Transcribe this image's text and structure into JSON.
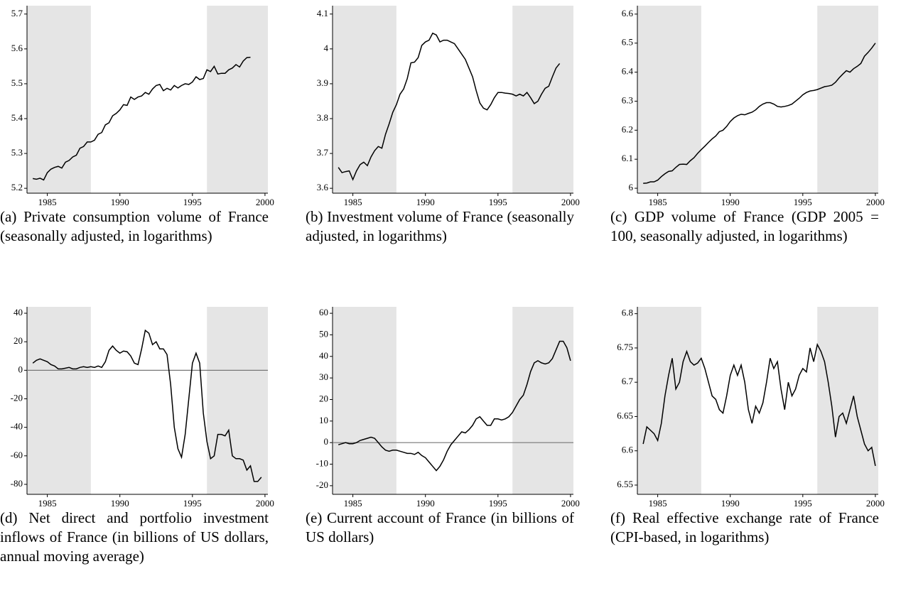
{
  "chart_data": [
    {
      "type": "line",
      "caption": "(a) Private consumption volume of France (seasonally adjusted, in logarithms)",
      "color": "#000000",
      "shade_color": "#e5e5e5",
      "xlim": [
        1983.6,
        2000.2
      ],
      "xticks": [
        1985,
        1990,
        1995,
        2000
      ],
      "ylim": [
        5.186,
        5.724
      ],
      "yticks": [
        5.2,
        5.3,
        5.4,
        5.5,
        5.6,
        5.7
      ],
      "shaded": [
        [
          1983.6,
          1988
        ],
        [
          1996,
          2000.2
        ]
      ],
      "x": [
        1984,
        1984.25,
        1984.5,
        1984.75,
        1985,
        1985.25,
        1985.5,
        1985.75,
        1986,
        1986.25,
        1986.5,
        1986.75,
        1987,
        1987.25,
        1987.5,
        1987.75,
        1988,
        1988.25,
        1988.5,
        1988.75,
        1989,
        1989.25,
        1989.5,
        1989.75,
        1990,
        1990.25,
        1990.5,
        1990.75,
        1991,
        1991.25,
        1991.5,
        1991.75,
        1992,
        1992.25,
        1992.5,
        1992.75,
        1993,
        1993.25,
        1993.5,
        1993.75,
        1994,
        1994.25,
        1994.5,
        1994.75,
        1995,
        1995.25,
        1995.5,
        1995.75,
        1996,
        1996.25,
        1996.5,
        1996.75,
        1997,
        1997.25,
        1997.5,
        1997.75,
        1998,
        1998.25,
        1998.5,
        1998.75,
        1999
      ],
      "values": [
        5.228,
        5.226,
        5.229,
        5.224,
        5.245,
        5.255,
        5.26,
        5.263,
        5.258,
        5.275,
        5.28,
        5.29,
        5.295,
        5.315,
        5.32,
        5.333,
        5.333,
        5.338,
        5.355,
        5.36,
        5.382,
        5.388,
        5.408,
        5.415,
        5.425,
        5.44,
        5.438,
        5.462,
        5.455,
        5.462,
        5.465,
        5.475,
        5.47,
        5.485,
        5.495,
        5.498,
        5.48,
        5.487,
        5.482,
        5.495,
        5.488,
        5.495,
        5.5,
        5.498,
        5.505,
        5.52,
        5.512,
        5.515,
        5.54,
        5.535,
        5.55,
        5.528,
        5.53,
        5.53,
        5.54,
        5.545,
        5.555,
        5.548,
        5.565,
        5.575,
        5.576
      ]
    },
    {
      "type": "line",
      "caption": "(b) Investment volume of France (seasonally adjusted, in logarithms)",
      "color": "#000000",
      "shade_color": "#e5e5e5",
      "xlim": [
        1983.6,
        2000.2
      ],
      "xticks": [
        1985,
        1990,
        1995,
        2000
      ],
      "ylim": [
        3.586,
        4.124
      ],
      "yticks": [
        3.6,
        3.7,
        3.8,
        3.9,
        4,
        4.1
      ],
      "shaded": [
        [
          1983.6,
          1988
        ],
        [
          1996,
          2000.2
        ]
      ],
      "x": [
        1984,
        1984.25,
        1984.5,
        1984.75,
        1985,
        1985.25,
        1985.5,
        1985.75,
        1986,
        1986.25,
        1986.5,
        1986.75,
        1987,
        1987.25,
        1987.5,
        1987.75,
        1988,
        1988.25,
        1988.5,
        1988.75,
        1989,
        1989.25,
        1989.5,
        1989.75,
        1990,
        1990.25,
        1990.5,
        1990.75,
        1991,
        1991.25,
        1991.5,
        1991.75,
        1992,
        1992.25,
        1992.5,
        1992.75,
        1993,
        1993.25,
        1993.5,
        1993.75,
        1994,
        1994.25,
        1994.5,
        1994.75,
        1995,
        1995.25,
        1995.5,
        1995.75,
        1996,
        1996.25,
        1996.5,
        1996.75,
        1997,
        1997.25,
        1997.5,
        1997.75,
        1998,
        1998.25,
        1998.5,
        1998.75,
        1999,
        1999.25
      ],
      "values": [
        3.66,
        3.645,
        3.648,
        3.65,
        3.625,
        3.65,
        3.668,
        3.675,
        3.665,
        3.69,
        3.708,
        3.72,
        3.715,
        3.755,
        3.785,
        3.818,
        3.84,
        3.87,
        3.885,
        3.915,
        3.96,
        3.962,
        3.975,
        4.01,
        4.02,
        4.025,
        4.045,
        4.04,
        4.02,
        4.025,
        4.025,
        4.02,
        4.015,
        4.0,
        3.985,
        3.97,
        3.945,
        3.92,
        3.88,
        3.845,
        3.83,
        3.825,
        3.84,
        3.86,
        3.875,
        3.875,
        3.873,
        3.872,
        3.87,
        3.865,
        3.87,
        3.865,
        3.875,
        3.86,
        3.843,
        3.85,
        3.87,
        3.887,
        3.893,
        3.92,
        3.945,
        3.958
      ]
    },
    {
      "type": "line",
      "caption": "(c) GDP volume of France (GDP 2005 = 100, seasonally adjusted, in logarithms)",
      "color": "#000000",
      "shade_color": "#e5e5e5",
      "xlim": [
        1983.6,
        2000.2
      ],
      "xticks": [
        1985,
        1990,
        1995,
        2000
      ],
      "ylim": [
        5.983,
        6.629
      ],
      "yticks": [
        6,
        6.1,
        6.2,
        6.3,
        6.4,
        6.5,
        6.6
      ],
      "shaded": [
        [
          1983.6,
          1988
        ],
        [
          1996,
          2000.2
        ]
      ],
      "x": [
        1984,
        1984.25,
        1984.5,
        1984.75,
        1985,
        1985.25,
        1985.5,
        1985.75,
        1986,
        1986.25,
        1986.5,
        1986.75,
        1987,
        1987.25,
        1987.5,
        1987.75,
        1988,
        1988.25,
        1988.5,
        1988.75,
        1989,
        1989.25,
        1989.5,
        1989.75,
        1990,
        1990.25,
        1990.5,
        1990.75,
        1991,
        1991.25,
        1991.5,
        1991.75,
        1992,
        1992.25,
        1992.5,
        1992.75,
        1993,
        1993.25,
        1993.5,
        1993.75,
        1994,
        1994.25,
        1994.5,
        1994.75,
        1995,
        1995.25,
        1995.5,
        1995.75,
        1996,
        1996.25,
        1996.5,
        1996.75,
        1997,
        1997.25,
        1997.5,
        1997.75,
        1998,
        1998.25,
        1998.5,
        1998.75,
        1999,
        1999.25,
        1999.5,
        1999.75,
        2000
      ],
      "values": [
        6.017,
        6.018,
        6.022,
        6.022,
        6.028,
        6.04,
        6.05,
        6.058,
        6.06,
        6.072,
        6.082,
        6.083,
        6.082,
        6.095,
        6.105,
        6.12,
        6.133,
        6.145,
        6.158,
        6.17,
        6.18,
        6.195,
        6.2,
        6.213,
        6.23,
        6.242,
        6.25,
        6.255,
        6.253,
        6.258,
        6.262,
        6.27,
        6.282,
        6.29,
        6.295,
        6.295,
        6.29,
        6.282,
        6.28,
        6.282,
        6.285,
        6.29,
        6.3,
        6.31,
        6.322,
        6.33,
        6.335,
        6.337,
        6.34,
        6.345,
        6.35,
        6.352,
        6.355,
        6.365,
        6.38,
        6.393,
        6.405,
        6.4,
        6.412,
        6.42,
        6.43,
        6.455,
        6.468,
        6.483,
        6.5
      ]
    },
    {
      "type": "line",
      "caption": "(d) Net direct and portfolio investment inflows of France (in billions of US dollars, annual moving average)",
      "color": "#000000",
      "shade_color": "#e5e5e5",
      "xlim": [
        1983.6,
        2000.2
      ],
      "xticks": [
        1985,
        1990,
        1995,
        2000
      ],
      "ylim": [
        -87,
        44.5
      ],
      "yticks": [
        -80,
        -60,
        -40,
        -20,
        0,
        20,
        40
      ],
      "shaded": [
        [
          1983.6,
          1988
        ],
        [
          1996,
          2000.2
        ]
      ],
      "hline": 0,
      "x": [
        1984,
        1984.25,
        1984.5,
        1984.75,
        1985,
        1985.25,
        1985.5,
        1985.75,
        1986,
        1986.25,
        1986.5,
        1986.75,
        1987,
        1987.25,
        1987.5,
        1987.75,
        1988,
        1988.25,
        1988.5,
        1988.75,
        1989,
        1989.25,
        1989.5,
        1989.75,
        1990,
        1990.25,
        1990.5,
        1990.75,
        1991,
        1991.25,
        1991.5,
        1991.75,
        1992,
        1992.25,
        1992.5,
        1992.75,
        1993,
        1993.25,
        1993.5,
        1993.75,
        1994,
        1994.25,
        1994.5,
        1994.75,
        1995,
        1995.25,
        1995.5,
        1995.75,
        1996,
        1996.25,
        1996.5,
        1996.75,
        1997,
        1997.25,
        1997.5,
        1997.75,
        1998,
        1998.25,
        1998.5,
        1998.75,
        1999,
        1999.25,
        1999.5,
        1999.75
      ],
      "values": [
        5,
        7,
        8,
        7,
        6,
        4,
        3,
        1,
        1,
        1.5,
        2,
        1,
        1,
        2,
        2.5,
        2,
        2.5,
        2,
        3,
        2,
        6,
        14,
        17,
        14,
        12,
        13.5,
        13,
        10,
        5,
        4,
        15,
        28,
        26,
        18,
        20,
        15,
        15,
        11,
        -10,
        -40,
        -55,
        -61,
        -45,
        -20,
        5,
        12,
        5,
        -30,
        -50,
        -62,
        -60,
        -45,
        -45,
        -46,
        -42,
        -60,
        -62,
        -62,
        -63,
        -70,
        -67,
        -78,
        -78,
        -75
      ]
    },
    {
      "type": "line",
      "caption": "(e) Current account of France (in billions of US dollars)",
      "color": "#000000",
      "shade_color": "#e5e5e5",
      "xlim": [
        1983.6,
        2000.2
      ],
      "xticks": [
        1985,
        1990,
        1995,
        2000
      ],
      "ylim": [
        -24,
        63
      ],
      "yticks": [
        -20,
        -10,
        0,
        10,
        20,
        30,
        40,
        50,
        60
      ],
      "shaded": [
        [
          1983.6,
          1988
        ],
        [
          1996,
          2000.2
        ]
      ],
      "hline": 0,
      "x": [
        1984,
        1984.25,
        1984.5,
        1984.75,
        1985,
        1985.25,
        1985.5,
        1985.75,
        1986,
        1986.25,
        1986.5,
        1986.75,
        1987,
        1987.25,
        1987.5,
        1987.75,
        1988,
        1988.25,
        1988.5,
        1988.75,
        1989,
        1989.25,
        1989.5,
        1989.75,
        1990,
        1990.25,
        1990.5,
        1990.75,
        1991,
        1991.25,
        1991.5,
        1991.75,
        1992,
        1992.25,
        1992.5,
        1992.75,
        1993,
        1993.25,
        1993.5,
        1993.75,
        1994,
        1994.25,
        1994.5,
        1994.75,
        1995,
        1995.25,
        1995.5,
        1995.75,
        1996,
        1996.25,
        1996.5,
        1996.75,
        1997,
        1997.25,
        1997.5,
        1997.75,
        1998,
        1998.25,
        1998.5,
        1998.75,
        1999,
        1999.25,
        1999.5,
        1999.75,
        2000
      ],
      "values": [
        -1,
        -0.5,
        0,
        -0.5,
        -0.5,
        0,
        1,
        1.5,
        2,
        2.5,
        2,
        0,
        -2,
        -3.5,
        -4,
        -3.5,
        -3.5,
        -4,
        -4.5,
        -5,
        -5,
        -5.5,
        -4.5,
        -6,
        -7,
        -9,
        -11,
        -13,
        -11,
        -8,
        -4,
        -1,
        1,
        3,
        5,
        4.5,
        6,
        8,
        11,
        12,
        10,
        8,
        8,
        11,
        11,
        10.5,
        11,
        12,
        14,
        17,
        20,
        22,
        27,
        33,
        37,
        38,
        37,
        36.5,
        37,
        39,
        43,
        47,
        47,
        44,
        38
      ]
    },
    {
      "type": "line",
      "caption": "(f) Real effective exchange rate of France (CPI-based, in logarithms)",
      "color": "#000000",
      "shade_color": "#e5e5e5",
      "xlim": [
        1983.6,
        2000.2
      ],
      "xticks": [
        1985,
        1990,
        1995,
        2000
      ],
      "ylim": [
        6.5365,
        6.81
      ],
      "yticks": [
        6.55,
        6.6,
        6.65,
        6.7,
        6.75,
        6.8
      ],
      "shaded": [
        [
          1983.6,
          1988
        ],
        [
          1996,
          2000.2
        ]
      ],
      "x": [
        1984,
        1984.25,
        1984.5,
        1984.75,
        1985,
        1985.25,
        1985.5,
        1985.75,
        1986,
        1986.25,
        1986.5,
        1986.75,
        1987,
        1987.25,
        1987.5,
        1987.75,
        1988,
        1988.25,
        1988.5,
        1988.75,
        1989,
        1989.25,
        1989.5,
        1989.75,
        1990,
        1990.25,
        1990.5,
        1990.75,
        1991,
        1991.25,
        1991.5,
        1991.75,
        1992,
        1992.25,
        1992.5,
        1992.75,
        1993,
        1993.25,
        1993.5,
        1993.75,
        1994,
        1994.25,
        1994.5,
        1994.75,
        1995,
        1995.25,
        1995.5,
        1995.75,
        1996,
        1996.25,
        1996.5,
        1996.75,
        1997,
        1997.25,
        1997.5,
        1997.75,
        1998,
        1998.25,
        1998.5,
        1998.75,
        1999,
        1999.25,
        1999.5,
        1999.75,
        2000
      ],
      "values": [
        6.61,
        6.635,
        6.63,
        6.625,
        6.615,
        6.64,
        6.68,
        6.71,
        6.735,
        6.69,
        6.7,
        6.73,
        6.745,
        6.73,
        6.725,
        6.728,
        6.735,
        6.72,
        6.7,
        6.68,
        6.675,
        6.66,
        6.655,
        6.68,
        6.71,
        6.725,
        6.71,
        6.725,
        6.7,
        6.66,
        6.64,
        6.665,
        6.655,
        6.67,
        6.7,
        6.735,
        6.72,
        6.73,
        6.69,
        6.66,
        6.7,
        6.68,
        6.69,
        6.71,
        6.72,
        6.715,
        6.75,
        6.73,
        6.755,
        6.745,
        6.73,
        6.7,
        6.665,
        6.62,
        6.65,
        6.655,
        6.64,
        6.66,
        6.68,
        6.65,
        6.63,
        6.61,
        6.6,
        6.605,
        6.578
      ]
    }
  ]
}
